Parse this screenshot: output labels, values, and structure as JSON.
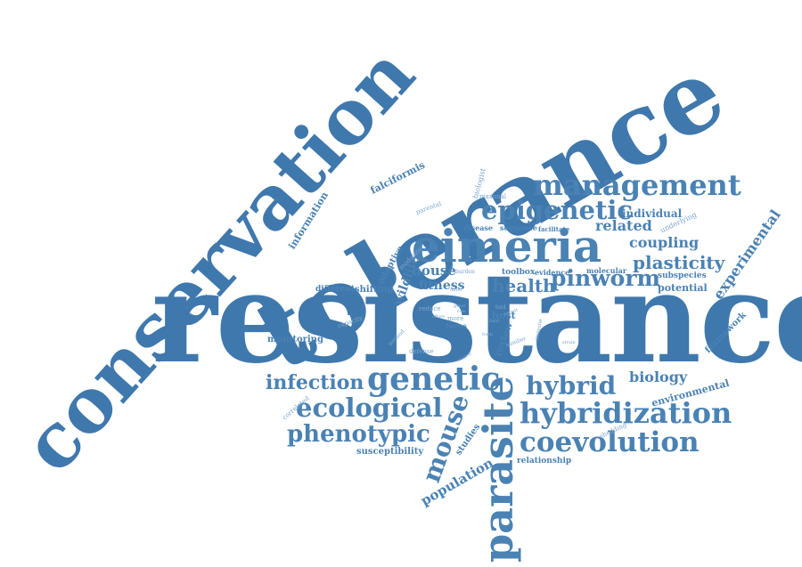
{
  "cloud": {
    "colors": {
      "primary": "#4a82b4",
      "light": "#7aa6cf",
      "dark": "#3f78ad",
      "background": "#ffffff"
    },
    "words": [
      "resistance",
      "conservation",
      "tolerance",
      "eimeria",
      "management",
      "epigenetic",
      "hybridization",
      "coevolution",
      "parasite",
      "genetic",
      "hybrid",
      "ecological",
      "phenotypic",
      "infection",
      "mouse",
      "pinworm",
      "health",
      "plasticity",
      "coupling",
      "related",
      "experimental",
      "biology",
      "population",
      "fitness",
      "house",
      "wildlife",
      "individual",
      "potential",
      "framework",
      "environmental",
      "monitoring",
      "information",
      "falciformis",
      "adaptive",
      "susceptibility",
      "studies",
      "review",
      "host",
      "focus",
      "toolbox",
      "evidence",
      "molecular",
      "subspecies",
      "shifting",
      "different",
      "capacity",
      "relationship",
      "underlying",
      "facilitate",
      "sequence",
      "disease",
      "parental",
      "biologist",
      "maximal",
      "modulate",
      "defense",
      "method",
      "reduce",
      "burden",
      "differ",
      "correlated",
      "shedding",
      "strain",
      "immune",
      "number",
      "more",
      "great",
      "field",
      "tool",
      "recent",
      "offset",
      "form",
      "role",
      "search"
    ]
  }
}
